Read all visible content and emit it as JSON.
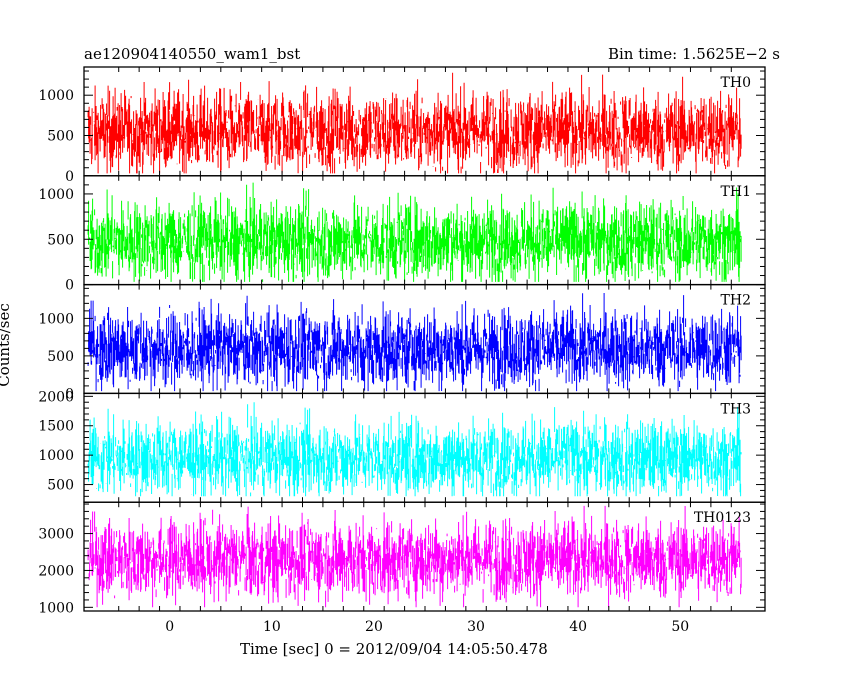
{
  "header": {
    "title": "ae120904140550_wam1_bst",
    "bin_time": "Bin time: 1.5625E−2 s"
  },
  "chart_data": {
    "type": "line",
    "xlabel": "Time [sec] 0 = 2012/09/04 14:05:50.478",
    "ylabel": "Counts/sec",
    "xlim": [
      -8.4,
      58.3
    ],
    "x_ticks": [
      0,
      10,
      20,
      30,
      40,
      50
    ],
    "x_range_data": [
      -8,
      56
    ],
    "panels": [
      {
        "name": "TH0",
        "color": "#ff0000",
        "ylim": [
          0,
          1350
        ],
        "ticks": [
          0,
          500,
          1000
        ],
        "mean": 550,
        "low": 30,
        "high": 1320
      },
      {
        "name": "TH1",
        "color": "#00ff00",
        "ylim": [
          0,
          1200
        ],
        "ticks": [
          0,
          500,
          1000
        ],
        "mean": 480,
        "low": 30,
        "high": 1150
      },
      {
        "name": "TH2",
        "color": "#0000ff",
        "ylim": [
          0,
          1450
        ],
        "ticks": [
          0,
          500,
          1000
        ],
        "mean": 600,
        "low": 30,
        "high": 1380
      },
      {
        "name": "TH3",
        "color": "#00ffff",
        "ylim": [
          200,
          2050
        ],
        "ticks": [
          500,
          1000,
          1500,
          2000
        ],
        "mean": 950,
        "low": 300,
        "high": 1950
      },
      {
        "name": "TH0123",
        "color": "#ff00ff",
        "ylim": [
          900,
          3850
        ],
        "ticks": [
          1000,
          2000,
          3000
        ],
        "mean": 2300,
        "low": 1000,
        "high": 3750
      }
    ]
  }
}
